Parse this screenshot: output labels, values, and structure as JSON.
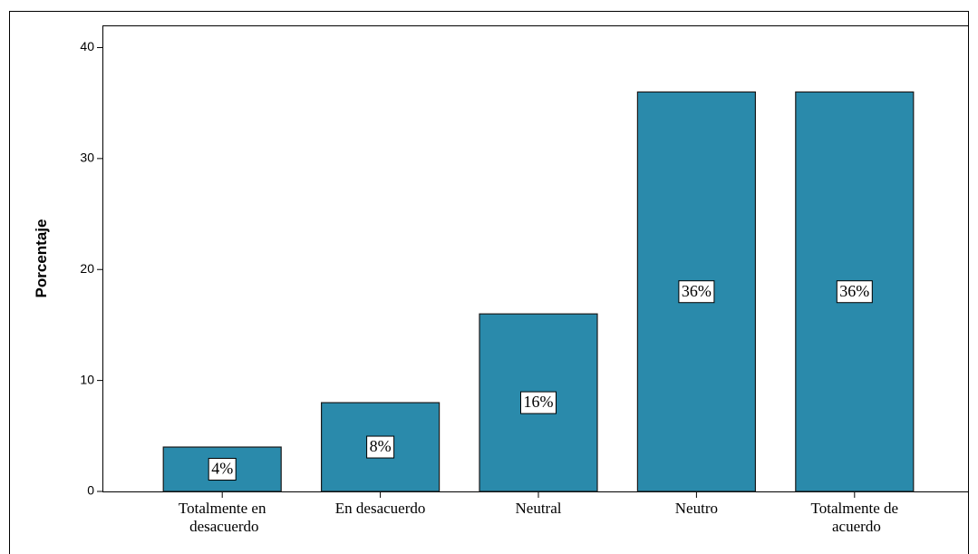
{
  "chart_data": {
    "type": "bar",
    "y_label": "Porcentaje",
    "categories": [
      "Totalmente en desacuerdo",
      "En desacuerdo",
      "Neutral",
      "Neutro",
      "Totalmente de acuerdo"
    ],
    "values": [
      4,
      8,
      16,
      36,
      36
    ],
    "value_labels": [
      "4%",
      "8%",
      "16%",
      "36%",
      "36%"
    ],
    "color": "#2a8aab",
    "ylim": [
      0,
      42
    ],
    "yticks": [
      0,
      10,
      20,
      30,
      40
    ]
  }
}
